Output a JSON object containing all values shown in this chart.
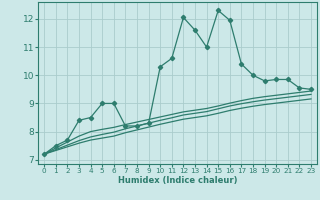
{
  "title": "",
  "xlabel": "Humidex (Indice chaleur)",
  "background_color": "#cce8e8",
  "grid_color": "#aacccc",
  "line_color": "#2e7d6e",
  "xlim": [
    -0.5,
    23.5
  ],
  "ylim": [
    6.85,
    12.6
  ],
  "yticks": [
    7,
    8,
    9,
    10,
    11,
    12
  ],
  "xticks": [
    0,
    1,
    2,
    3,
    4,
    5,
    6,
    7,
    8,
    9,
    10,
    11,
    12,
    13,
    14,
    15,
    16,
    17,
    18,
    19,
    20,
    21,
    22,
    23
  ],
  "series1_x": [
    0,
    1,
    2,
    3,
    4,
    5,
    6,
    7,
    8,
    9,
    10,
    11,
    12,
    13,
    14,
    15,
    16,
    17,
    18,
    19,
    20,
    21,
    22,
    23
  ],
  "series1_y": [
    7.2,
    7.5,
    7.7,
    8.4,
    8.5,
    9.0,
    9.0,
    8.2,
    8.2,
    8.3,
    10.3,
    10.6,
    12.05,
    11.6,
    11.0,
    12.3,
    11.95,
    10.4,
    10.0,
    9.8,
    9.85,
    9.85,
    9.55,
    9.5
  ],
  "series2_x": [
    0,
    1,
    2,
    3,
    4,
    5,
    6,
    7,
    8,
    9,
    10,
    11,
    12,
    13,
    14,
    15,
    16,
    17,
    18,
    19,
    20,
    21,
    22,
    23
  ],
  "series2_y": [
    7.2,
    7.42,
    7.63,
    7.84,
    8.0,
    8.08,
    8.15,
    8.25,
    8.34,
    8.43,
    8.52,
    8.61,
    8.7,
    8.76,
    8.82,
    8.91,
    9.01,
    9.1,
    9.18,
    9.24,
    9.29,
    9.34,
    9.39,
    9.44
  ],
  "series3_x": [
    0,
    1,
    2,
    3,
    4,
    5,
    6,
    7,
    8,
    9,
    10,
    11,
    12,
    13,
    14,
    15,
    16,
    17,
    18,
    19,
    20,
    21,
    22,
    23
  ],
  "series3_y": [
    7.2,
    7.36,
    7.52,
    7.68,
    7.81,
    7.9,
    7.98,
    8.1,
    8.2,
    8.3,
    8.4,
    8.49,
    8.59,
    8.65,
    8.71,
    8.81,
    8.91,
    8.99,
    9.06,
    9.12,
    9.17,
    9.22,
    9.27,
    9.32
  ],
  "series4_x": [
    0,
    1,
    2,
    3,
    4,
    5,
    6,
    7,
    8,
    9,
    10,
    11,
    12,
    13,
    14,
    15,
    16,
    17,
    18,
    19,
    20,
    21,
    22,
    23
  ],
  "series4_y": [
    7.2,
    7.33,
    7.46,
    7.59,
    7.7,
    7.77,
    7.84,
    7.96,
    8.06,
    8.16,
    8.26,
    8.35,
    8.44,
    8.5,
    8.56,
    8.65,
    8.75,
    8.83,
    8.9,
    8.96,
    9.01,
    9.06,
    9.11,
    9.16
  ]
}
